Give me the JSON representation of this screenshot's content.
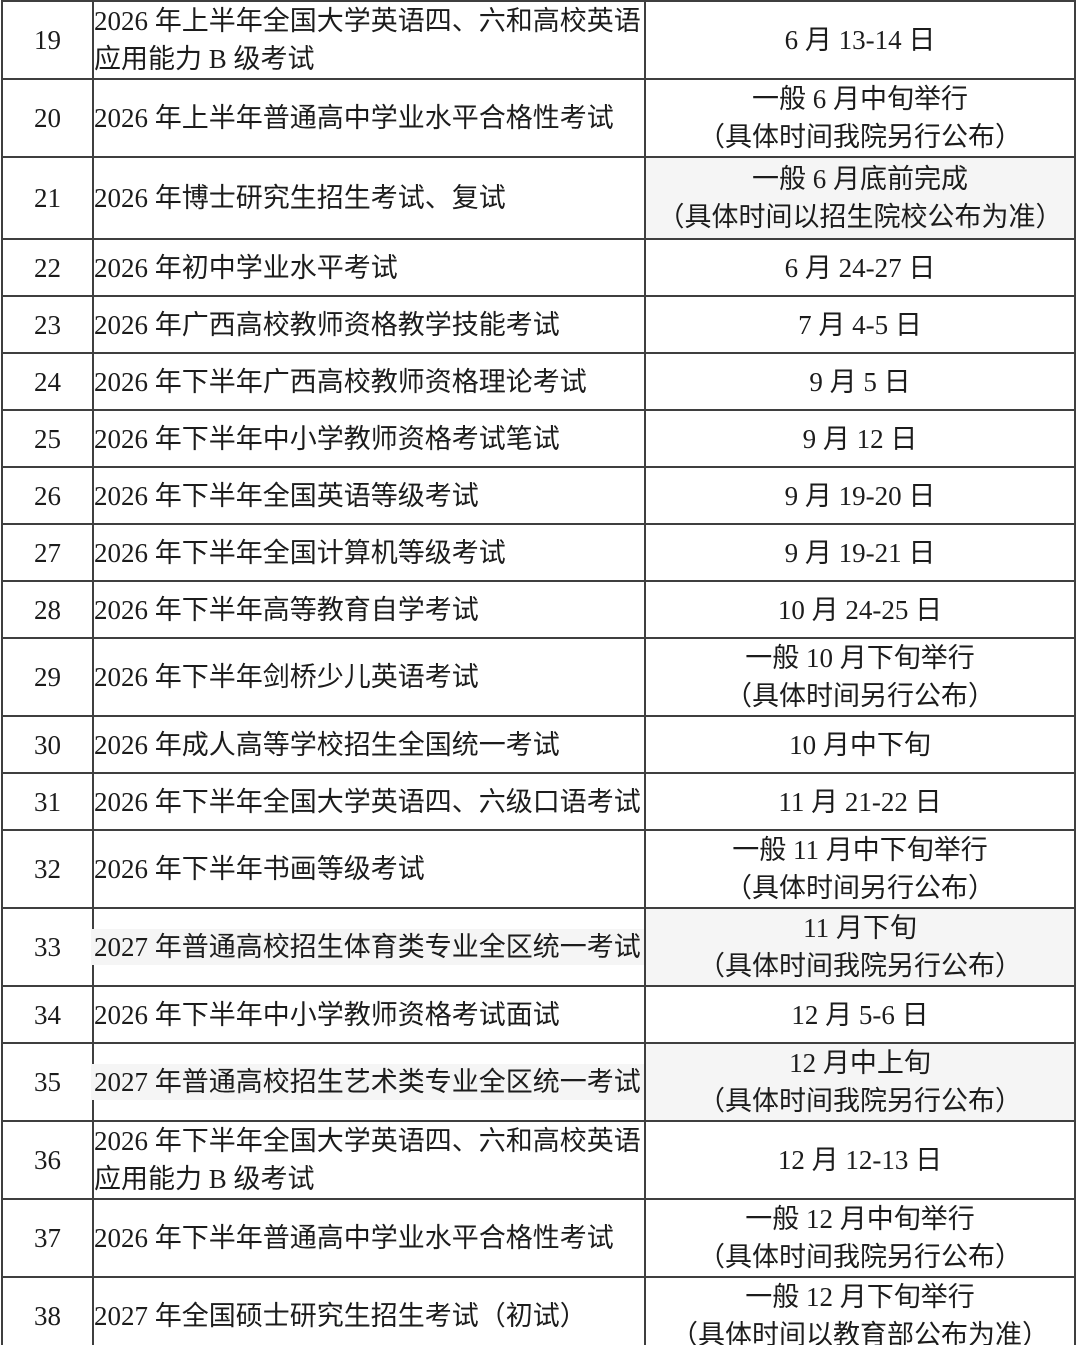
{
  "colors": {
    "border": "#3f3f3f",
    "text": "#1c1c1c",
    "highlight": "#f5f5f5",
    "background": "#ffffff"
  },
  "table": {
    "rows": [
      {
        "no": "19",
        "name": "2026 年上半年全国大学英语四、六和高校英语\n应用能力 B 级考试",
        "date1": "6 月 13-14 日",
        "date2": "",
        "tall": true,
        "name_highlight": false,
        "date_highlight": false
      },
      {
        "no": "20",
        "name": "2026 年上半年普通高中学业水平合格性考试",
        "date1": "一般 6 月中旬举行",
        "date2": "（具体时间我院另行公布）",
        "tall": true,
        "name_highlight": false,
        "date_highlight": false
      },
      {
        "no": "21",
        "name": "2026 年博士研究生招生考试、复试",
        "date1": "一般 6 月底前完成",
        "date2": "（具体时间以招生院校公布为准）",
        "tall": true,
        "name_highlight": false,
        "date_highlight": true
      },
      {
        "no": "22",
        "name": "2026 年初中学业水平考试",
        "date1": "6 月 24-27 日",
        "date2": "",
        "tall": false,
        "name_highlight": false,
        "date_highlight": false
      },
      {
        "no": "23",
        "name": "2026 年广西高校教师资格教学技能考试",
        "date1": "7 月 4-5 日",
        "date2": "",
        "tall": false,
        "name_highlight": false,
        "date_highlight": false
      },
      {
        "no": "24",
        "name": "2026 年下半年广西高校教师资格理论考试",
        "date1": "9 月 5 日",
        "date2": "",
        "tall": false,
        "name_highlight": false,
        "date_highlight": false
      },
      {
        "no": "25",
        "name": "2026 年下半年中小学教师资格考试笔试",
        "date1": "9 月 12 日",
        "date2": "",
        "tall": false,
        "name_highlight": false,
        "date_highlight": false
      },
      {
        "no": "26",
        "name": "2026 年下半年全国英语等级考试",
        "date1": "9 月 19-20 日",
        "date2": "",
        "tall": false,
        "name_highlight": false,
        "date_highlight": false
      },
      {
        "no": "27",
        "name": "2026 年下半年全国计算机等级考试",
        "date1": "9 月 19-21 日",
        "date2": "",
        "tall": false,
        "name_highlight": false,
        "date_highlight": false
      },
      {
        "no": "28",
        "name": "2026 年下半年高等教育自学考试",
        "date1": "10 月 24-25 日",
        "date2": "",
        "tall": false,
        "name_highlight": false,
        "date_highlight": false
      },
      {
        "no": "29",
        "name": "2026 年下半年剑桥少儿英语考试",
        "date1": "一般 10 月下旬举行",
        "date2": "（具体时间另行公布）",
        "tall": true,
        "name_highlight": false,
        "date_highlight": false
      },
      {
        "no": "30",
        "name": "2026 年成人高等学校招生全国统一考试",
        "date1": "10 月中下旬",
        "date2": "",
        "tall": false,
        "name_highlight": false,
        "date_highlight": false
      },
      {
        "no": "31",
        "name": "2026 年下半年全国大学英语四、六级口语考试",
        "date1": "11 月 21-22 日",
        "date2": "",
        "tall": false,
        "name_highlight": false,
        "date_highlight": false
      },
      {
        "no": "32",
        "name": "2026 年下半年书画等级考试",
        "date1": "一般 11 月中下旬举行",
        "date2": "（具体时间另行公布）",
        "tall": true,
        "name_highlight": false,
        "date_highlight": false
      },
      {
        "no": "33",
        "name": "2027 年普通高校招生体育类专业全区统一考试",
        "date1": "11 月下旬",
        "date2": "（具体时间我院另行公布）",
        "tall": true,
        "name_highlight": true,
        "date_highlight": true
      },
      {
        "no": "34",
        "name": "2026 年下半年中小学教师资格考试面试",
        "date1": "12 月 5-6 日",
        "date2": "",
        "tall": false,
        "name_highlight": false,
        "date_highlight": false
      },
      {
        "no": "35",
        "name": "2027 年普通高校招生艺术类专业全区统一考试",
        "date1": "12 月中上旬",
        "date2": "（具体时间我院另行公布）",
        "tall": true,
        "name_highlight": true,
        "date_highlight": true
      },
      {
        "no": "36",
        "name": "2026 年下半年全国大学英语四、六和高校英语\n应用能力 B 级考试",
        "date1": "12 月 12-13 日",
        "date2": "",
        "tall": true,
        "name_highlight": false,
        "date_highlight": false
      },
      {
        "no": "37",
        "name": "2026 年下半年普通高中学业水平合格性考试",
        "date1": "一般 12 月中旬举行",
        "date2": "（具体时间我院另行公布）",
        "tall": true,
        "name_highlight": false,
        "date_highlight": false
      },
      {
        "no": "38",
        "name": "2027 年全国硕士研究生招生考试（初试）",
        "date1": "一般 12 月下旬举行",
        "date2": "（具体时间以教育部公布为准）",
        "tall": true,
        "name_highlight": false,
        "date_highlight": false
      }
    ]
  }
}
